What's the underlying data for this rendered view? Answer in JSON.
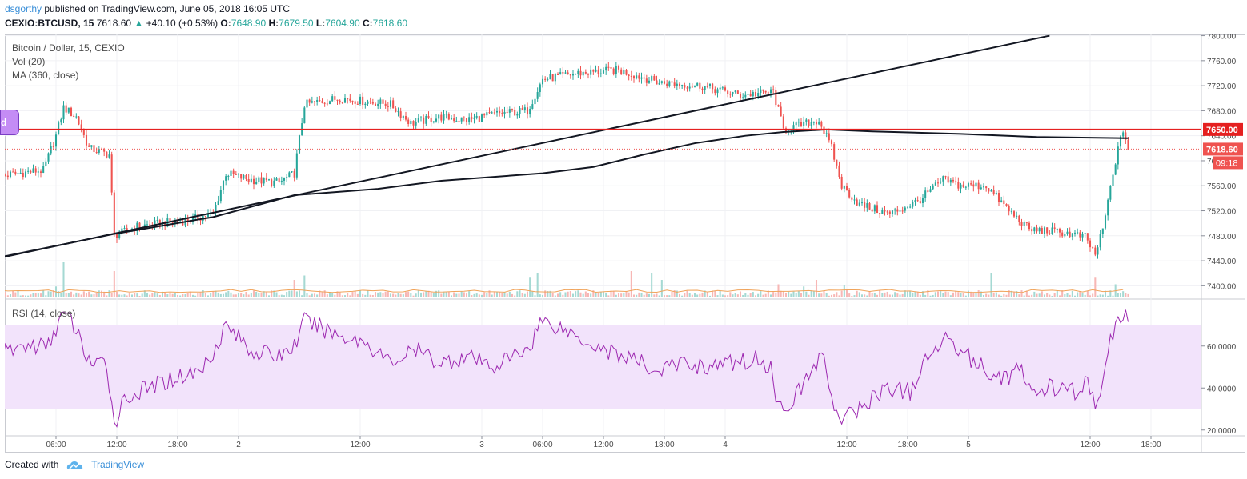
{
  "header": {
    "username": "dsgorthy",
    "published_text": "published on TradingView.com, June 05, 2018 16:05 UTC",
    "symbol": "CEXIO:BTCUSD, 15",
    "last": "7618.60",
    "change": "+40.10 (+0.53%)",
    "open_label": "O:",
    "open": "7648.90",
    "high_label": "H:",
    "high": "7679.50",
    "low_label": "L:",
    "low": "7604.90",
    "close_label": "C:",
    "close": "7618.60"
  },
  "legend": {
    "title": "Bitcoin / Dollar, 15, CEXIO",
    "vol": "Vol (20)",
    "ma": "MA (360, close)",
    "rsi": "RSI (14, close)"
  },
  "markers": {
    "left_pill": "d",
    "hline_label": "7650.00",
    "price_label": "7618.60",
    "countdown": "09:18"
  },
  "footer": {
    "created_with": "Created with",
    "brand": "TradingView"
  },
  "colors": {
    "up": "#26a69a",
    "down": "#ef5350",
    "hline": "#e52020",
    "rsi_line": "#9c27b0",
    "rsi_band": "#f2e3fb",
    "ma_line": "#131722",
    "trendline": "#131722",
    "brand": "#3a8fd8"
  },
  "chart_data": {
    "type": "candlestick",
    "interval": "15",
    "price_axis": {
      "ticks": [
        "7800.00",
        "7760.00",
        "7720.00",
        "7680.00",
        "7640.00",
        "7600.00",
        "7560.00",
        "7520.00",
        "7480.00",
        "7440.00",
        "7400.00"
      ],
      "ylim": [
        7380,
        7802
      ]
    },
    "rsi_axis": {
      "ticks": [
        "60.0000",
        "40.0000",
        "20.0000"
      ],
      "ylim": [
        18,
        82
      ],
      "upper_band": 70,
      "lower_band": 30
    },
    "time_axis": {
      "labels": [
        "06:00",
        "12:00",
        "18:00",
        "2",
        "12:00",
        "3",
        "06:00",
        "12:00",
        "18:00",
        "4",
        "12:00",
        "18:00",
        "5",
        "12:00",
        "18:00"
      ],
      "label_index": [
        23,
        47,
        71,
        95,
        143,
        191,
        215,
        239,
        263,
        287,
        335,
        359,
        383,
        431,
        455
      ]
    },
    "horizontal_line": 7650.0,
    "last_price": 7618.6,
    "price_path": [
      [
        0,
        7575
      ],
      [
        8,
        7580
      ],
      [
        18,
        7585
      ],
      [
        23,
        7640
      ],
      [
        26,
        7685
      ],
      [
        31,
        7670
      ],
      [
        36,
        7620
      ],
      [
        44,
        7610
      ],
      [
        46,
        7480
      ],
      [
        55,
        7495
      ],
      [
        65,
        7500
      ],
      [
        75,
        7505
      ],
      [
        85,
        7515
      ],
      [
        90,
        7580
      ],
      [
        99,
        7570
      ],
      [
        111,
        7565
      ],
      [
        117,
        7580
      ],
      [
        121,
        7690
      ],
      [
        135,
        7700
      ],
      [
        155,
        7690
      ],
      [
        163,
        7660
      ],
      [
        175,
        7670
      ],
      [
        185,
        7665
      ],
      [
        197,
        7675
      ],
      [
        209,
        7680
      ],
      [
        215,
        7730
      ],
      [
        229,
        7740
      ],
      [
        245,
        7745
      ],
      [
        261,
        7725
      ],
      [
        277,
        7720
      ],
      [
        293,
        7705
      ],
      [
        306,
        7710
      ],
      [
        310,
        7650
      ],
      [
        324,
        7665
      ],
      [
        329,
        7620
      ],
      [
        333,
        7560
      ],
      [
        340,
        7530
      ],
      [
        352,
        7515
      ],
      [
        363,
        7535
      ],
      [
        373,
        7570
      ],
      [
        380,
        7560
      ],
      [
        390,
        7560
      ],
      [
        399,
        7520
      ],
      [
        407,
        7490
      ],
      [
        421,
        7485
      ],
      [
        429,
        7478
      ],
      [
        433,
        7450
      ],
      [
        436,
        7490
      ],
      [
        441,
        7600
      ],
      [
        444,
        7650
      ],
      [
        446,
        7619
      ]
    ],
    "ma_path": [
      [
        0,
        7445
      ],
      [
        46,
        7483
      ],
      [
        85,
        7510
      ],
      [
        117,
        7545
      ],
      [
        150,
        7555
      ],
      [
        175,
        7568
      ],
      [
        215,
        7580
      ],
      [
        235,
        7590
      ],
      [
        255,
        7610
      ],
      [
        275,
        7628
      ],
      [
        295,
        7640
      ],
      [
        310,
        7646
      ],
      [
        327,
        7650
      ],
      [
        345,
        7647
      ],
      [
        380,
        7643
      ],
      [
        410,
        7638
      ],
      [
        446,
        7636
      ]
    ],
    "trendline": {
      "start": [
        0,
        7444
      ],
      "end": [
        415,
        7800
      ]
    },
    "rsi_path": [
      [
        0,
        55
      ],
      [
        10,
        60
      ],
      [
        20,
        60
      ],
      [
        24,
        72
      ],
      [
        26,
        75
      ],
      [
        30,
        70
      ],
      [
        34,
        58
      ],
      [
        38,
        50
      ],
      [
        43,
        52
      ],
      [
        46,
        23
      ],
      [
        50,
        35
      ],
      [
        60,
        40
      ],
      [
        70,
        45
      ],
      [
        80,
        48
      ],
      [
        86,
        60
      ],
      [
        90,
        70
      ],
      [
        100,
        58
      ],
      [
        110,
        55
      ],
      [
        117,
        60
      ],
      [
        121,
        72
      ],
      [
        135,
        65
      ],
      [
        145,
        62
      ],
      [
        155,
        52
      ],
      [
        165,
        58
      ],
      [
        175,
        52
      ],
      [
        185,
        55
      ],
      [
        195,
        50
      ],
      [
        205,
        56
      ],
      [
        210,
        60
      ],
      [
        214,
        72
      ],
      [
        220,
        70
      ],
      [
        230,
        64
      ],
      [
        240,
        58
      ],
      [
        250,
        54
      ],
      [
        260,
        48
      ],
      [
        270,
        52
      ],
      [
        280,
        50
      ],
      [
        290,
        52
      ],
      [
        300,
        54
      ],
      [
        305,
        50
      ],
      [
        308,
        30
      ],
      [
        315,
        36
      ],
      [
        321,
        48
      ],
      [
        325,
        56
      ],
      [
        332,
        24
      ],
      [
        340,
        30
      ],
      [
        350,
        40
      ],
      [
        360,
        38
      ],
      [
        365,
        50
      ],
      [
        372,
        62
      ],
      [
        376,
        65
      ],
      [
        380,
        58
      ],
      [
        390,
        48
      ],
      [
        398,
        45
      ],
      [
        403,
        50
      ],
      [
        407,
        38
      ],
      [
        415,
        40
      ],
      [
        425,
        38
      ],
      [
        430,
        44
      ],
      [
        433,
        30
      ],
      [
        436,
        40
      ],
      [
        439,
        65
      ],
      [
        442,
        70
      ],
      [
        444,
        76
      ],
      [
        446,
        70
      ]
    ],
    "volume_spikes": [
      [
        23,
        25
      ],
      [
        26,
        80
      ],
      [
        46,
        60
      ],
      [
        117,
        40
      ],
      [
        121,
        50
      ],
      [
        210,
        45
      ],
      [
        213,
        55
      ],
      [
        250,
        60
      ],
      [
        258,
        55
      ],
      [
        262,
        40
      ],
      [
        308,
        30
      ],
      [
        318,
        25
      ],
      [
        323,
        40
      ],
      [
        334,
        28
      ],
      [
        392,
        55
      ],
      [
        433,
        45
      ],
      [
        441,
        30
      ]
    ]
  }
}
